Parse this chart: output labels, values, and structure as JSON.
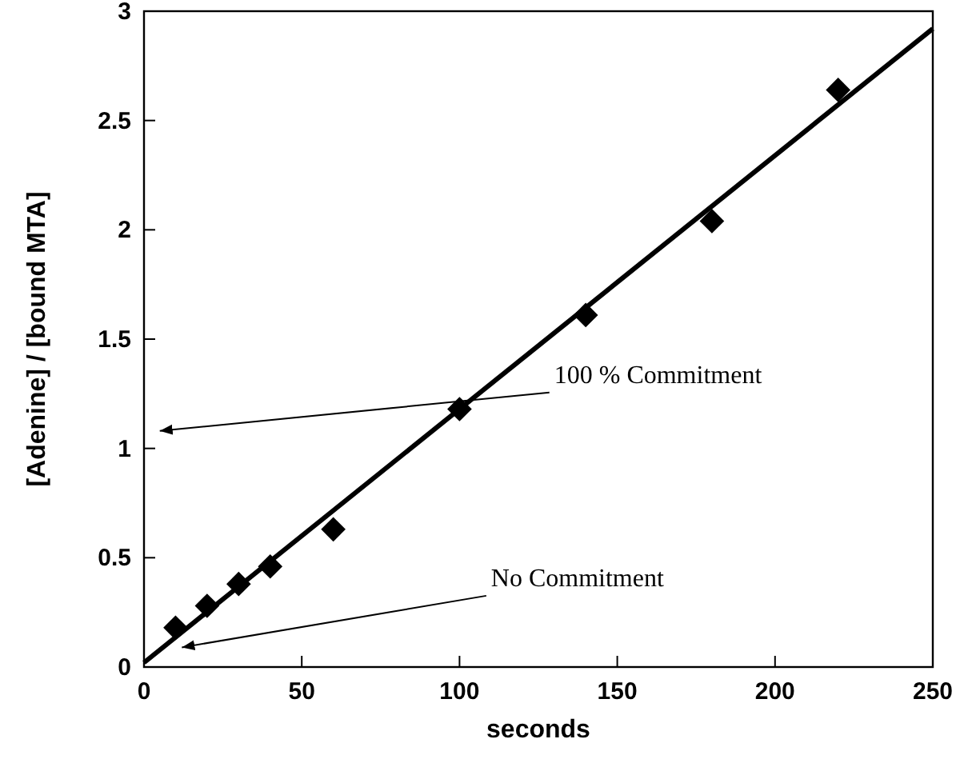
{
  "chart_data": {
    "type": "scatter",
    "xlabel": "seconds",
    "ylabel": "[Adenine] / [bound MTA]",
    "xlim": [
      0,
      250
    ],
    "ylim": [
      0,
      3
    ],
    "xticks": [
      0,
      50,
      100,
      150,
      200,
      250
    ],
    "yticks": [
      0,
      0.5,
      1,
      1.5,
      2,
      2.5,
      3
    ],
    "grid": false,
    "series": [
      {
        "marker": "diamond",
        "color": "#000000",
        "x": [
          10,
          20,
          30,
          40,
          60,
          100,
          140,
          180,
          220
        ],
        "values": [
          0.18,
          0.28,
          0.38,
          0.46,
          0.63,
          1.18,
          1.61,
          2.04,
          2.64
        ]
      },
      {
        "type": "line",
        "marker": "none",
        "color": "#000000",
        "x": [
          0,
          250
        ],
        "values": [
          0.02,
          2.92
        ]
      }
    ],
    "annotations": [
      "100 % Commitment",
      "No Commitment"
    ]
  }
}
